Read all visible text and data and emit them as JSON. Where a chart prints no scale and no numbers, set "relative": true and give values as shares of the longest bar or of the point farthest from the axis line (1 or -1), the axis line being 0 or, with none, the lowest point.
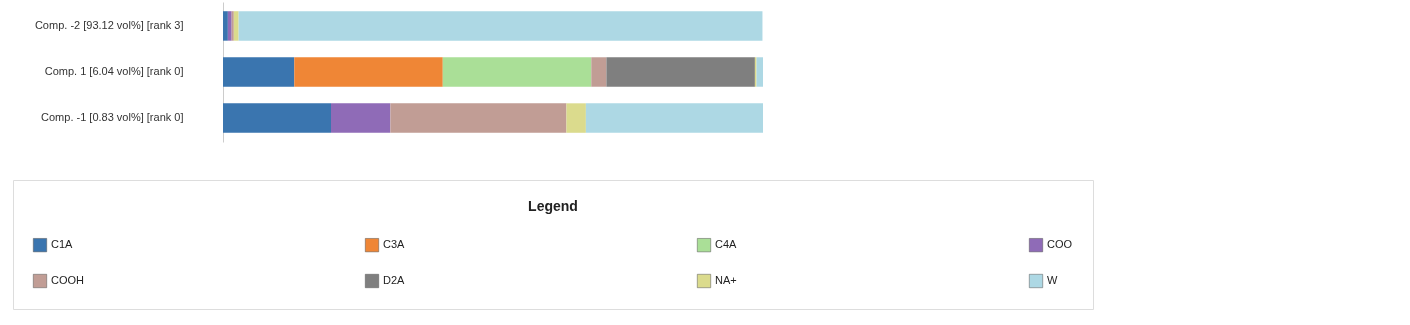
{
  "chart_data": {
    "type": "bar",
    "orientation": "horizontal",
    "relative": true,
    "stacked": true,
    "legend_title": "Legend",
    "legend": "bottom",
    "categories": [
      "Comp. -2  [93.12 vol%] [rank 3]",
      "Comp. 1  [6.04 vol%] [rank 0]",
      "Comp. -1  [0.83 vol%] [rank 0]"
    ],
    "series": [
      {
        "name": "C1A",
        "color": "#3a75af",
        "values": [
          0.009,
          0.132,
          0.2
        ]
      },
      {
        "name": "C3A",
        "color": "#ef8636",
        "values": [
          null,
          0.275,
          null
        ]
      },
      {
        "name": "C4A",
        "color": "#aadf97",
        "values": [
          null,
          0.275,
          null
        ]
      },
      {
        "name": "COO",
        "color": "#8f6bb7",
        "values": [
          0.007,
          null,
          0.11
        ]
      },
      {
        "name": "COOH",
        "color": "#c19d95",
        "values": [
          0.004,
          0.028,
          0.326
        ]
      },
      {
        "name": "D2A",
        "color": "#7f7f7f",
        "values": [
          null,
          0.275,
          null
        ]
      },
      {
        "name": "NA+",
        "color": "#dbdb8d",
        "values": [
          0.009,
          0.003,
          0.036
        ]
      },
      {
        "name": "W",
        "color": "#add8e4",
        "values": [
          0.97,
          0.012,
          0.328
        ]
      }
    ]
  }
}
